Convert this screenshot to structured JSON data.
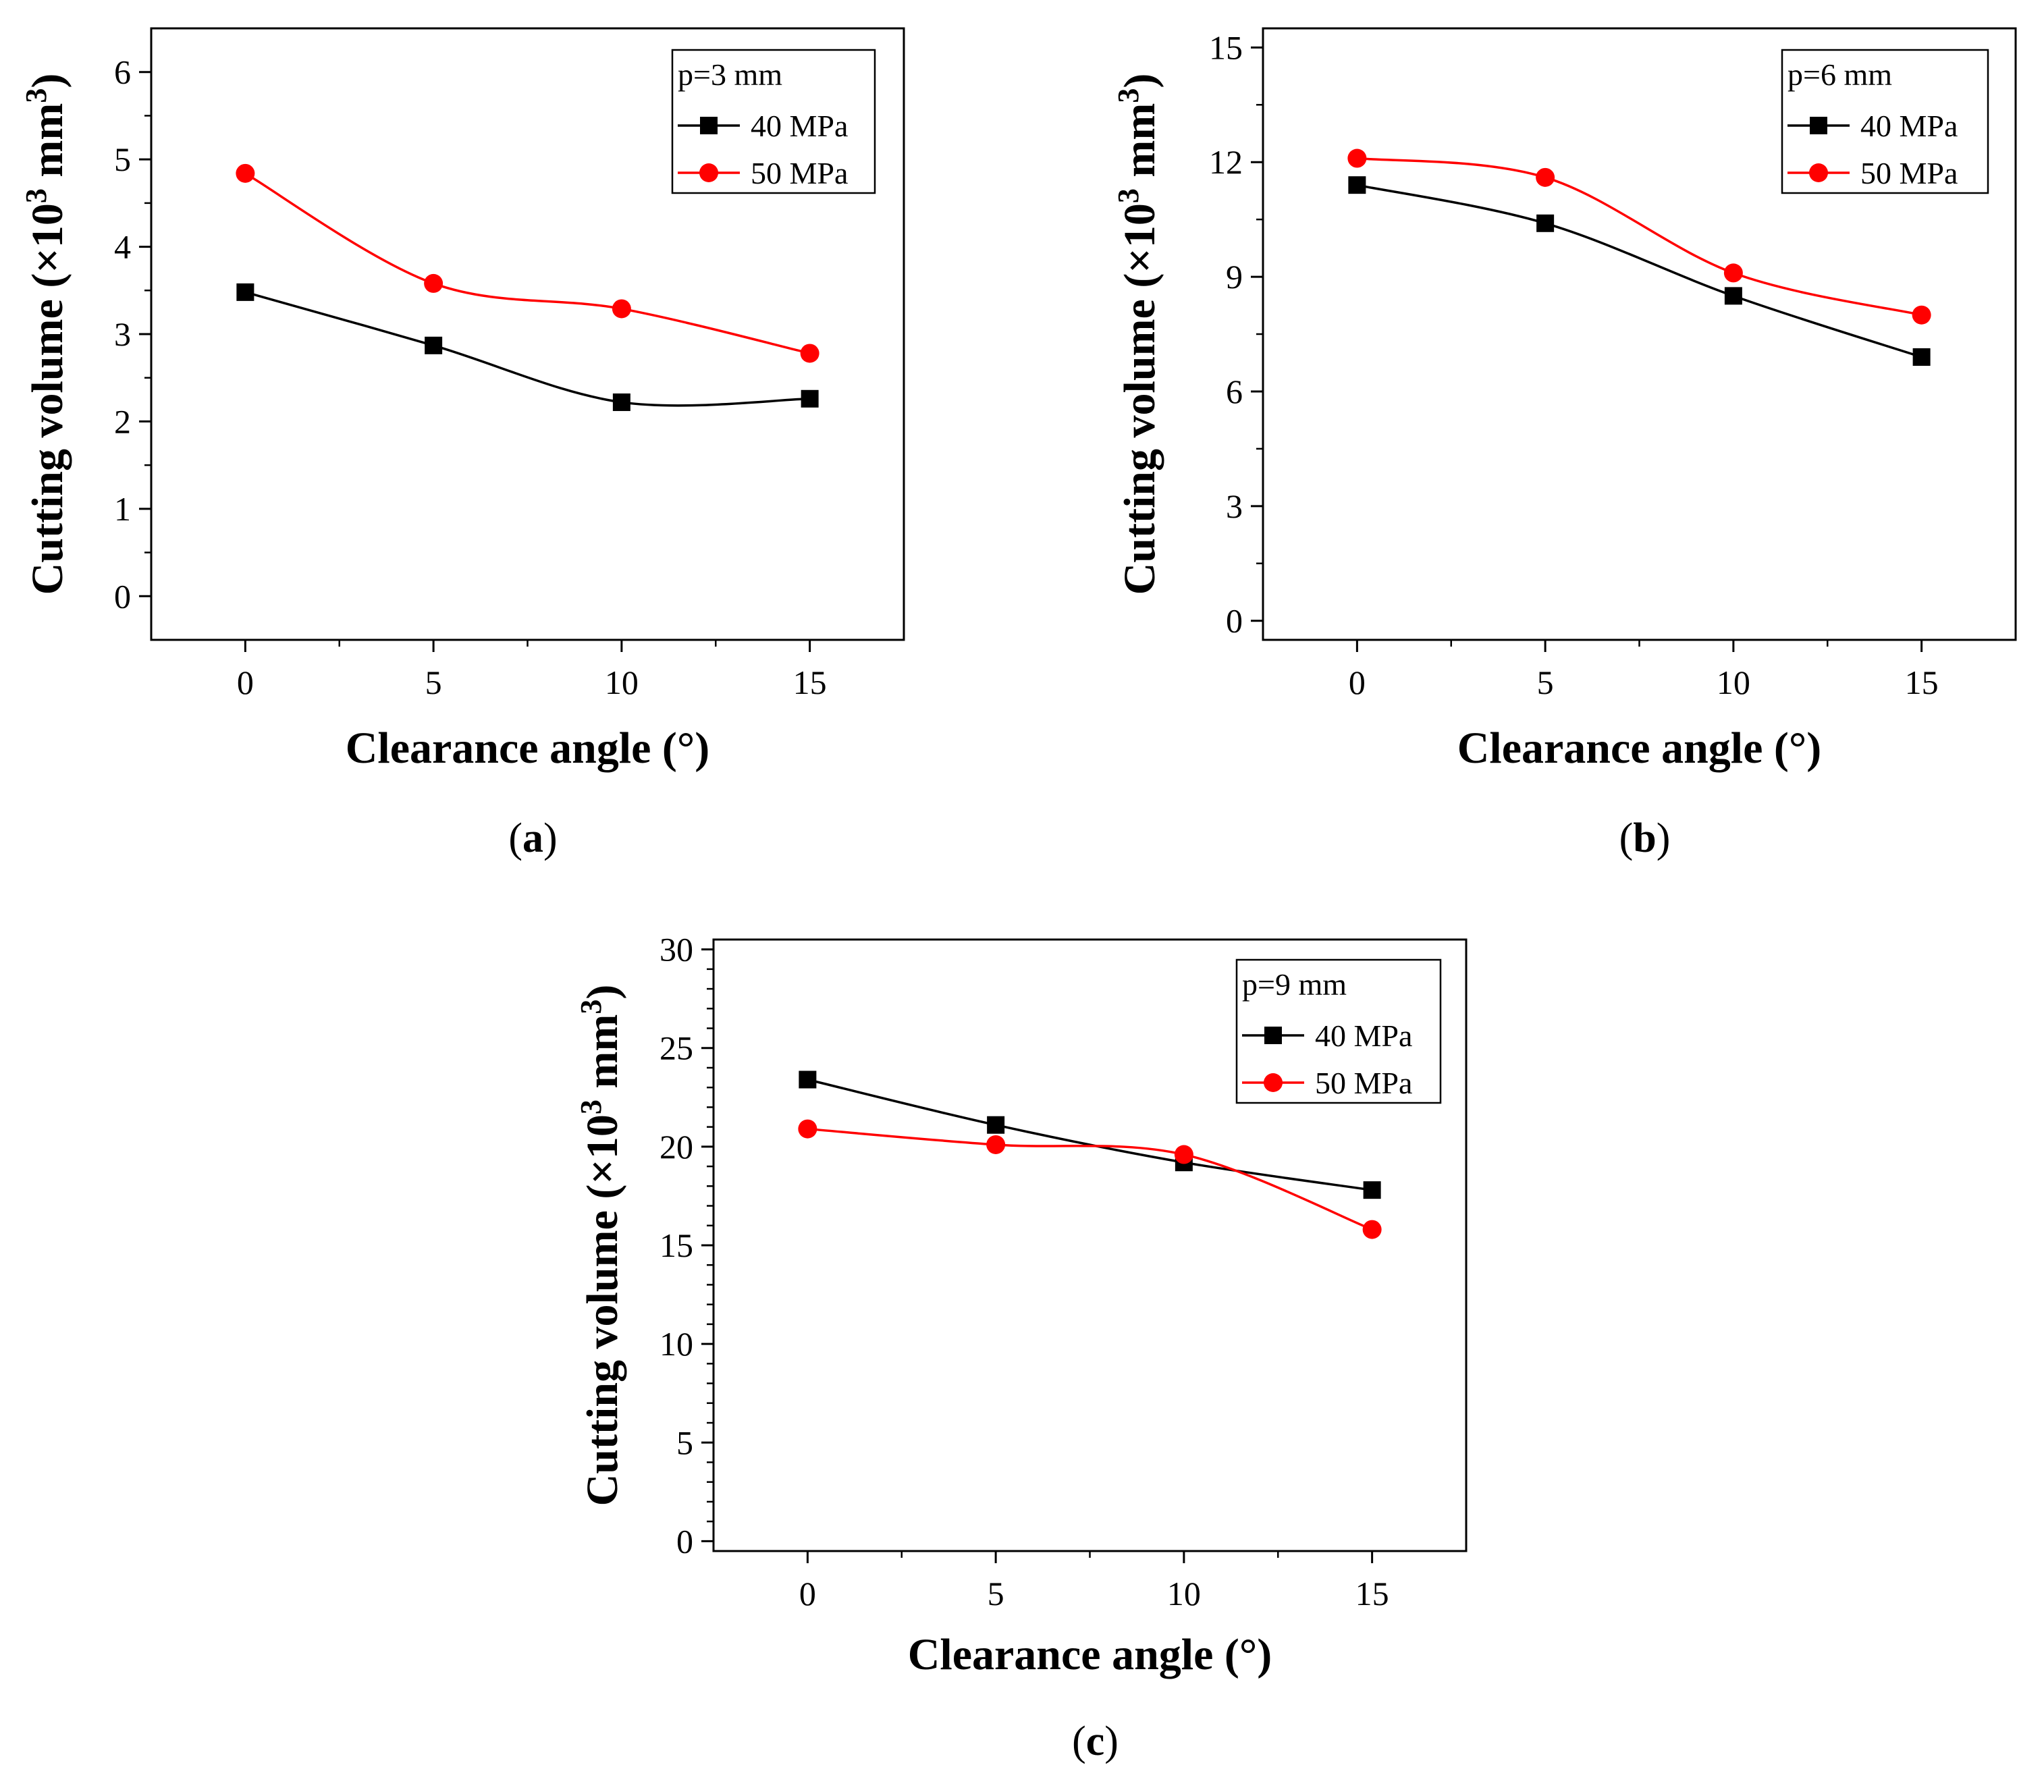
{
  "chart_data": [
    {
      "type": "line",
      "panel": "(a)",
      "caption_letter": "a",
      "title": "",
      "legend_title": "p=3 mm",
      "legend_position": "top-right",
      "xlabel": "Clearance angle (°)",
      "ylabel": "Cutting volume (×10³ mm³)",
      "xlim": [
        -2.5,
        17.5
      ],
      "ylim": [
        -0.5,
        6.5
      ],
      "x_ticks": [
        0,
        5,
        10,
        15
      ],
      "y_ticks": [
        0,
        1,
        2,
        3,
        4,
        5,
        6
      ],
      "y_minor_step": 0.5,
      "grid": false,
      "series": [
        {
          "name": "40 MPa",
          "color": "#000000",
          "marker": "square",
          "x": [
            0,
            5,
            10,
            15
          ],
          "values": [
            3.48,
            2.87,
            2.22,
            2.26
          ]
        },
        {
          "name": "50 MPa",
          "color": "#ff0000",
          "marker": "circle",
          "x": [
            0,
            5,
            10,
            15
          ],
          "values": [
            4.84,
            3.58,
            3.29,
            2.78
          ]
        }
      ]
    },
    {
      "type": "line",
      "panel": "(b)",
      "caption_letter": "b",
      "title": "",
      "legend_title": "p=6 mm",
      "legend_position": "top-right",
      "xlabel": "Clearance angle (°)",
      "ylabel": "Cutting volume (×10³ mm³)",
      "xlim": [
        -2.5,
        17.5
      ],
      "ylim": [
        -0.5,
        15.5
      ],
      "x_ticks": [
        0,
        5,
        10,
        15
      ],
      "y_ticks": [
        0,
        3,
        6,
        9,
        12,
        15
      ],
      "y_minor_step": 1.5,
      "grid": false,
      "series": [
        {
          "name": "40 MPa",
          "color": "#000000",
          "marker": "square",
          "x": [
            0,
            5,
            10,
            15
          ],
          "values": [
            11.4,
            10.4,
            8.5,
            6.9
          ]
        },
        {
          "name": "50 MPa",
          "color": "#ff0000",
          "marker": "circle",
          "x": [
            0,
            5,
            10,
            15
          ],
          "values": [
            12.1,
            11.6,
            9.1,
            8.0
          ]
        }
      ]
    },
    {
      "type": "line",
      "panel": "(c)",
      "caption_letter": "c",
      "title": "",
      "legend_title": "p=9 mm",
      "legend_position": "top-right",
      "xlabel": "Clearance angle (°)",
      "ylabel": "Cutting volume (×10³ mm³)",
      "xlim": [
        -2.5,
        17.5
      ],
      "ylim": [
        -0.5,
        30.5
      ],
      "x_ticks": [
        0,
        5,
        10,
        15
      ],
      "y_ticks": [
        0,
        5,
        10,
        15,
        20,
        25,
        30
      ],
      "y_minor_step": 1,
      "grid": false,
      "series": [
        {
          "name": "40 MPa",
          "color": "#000000",
          "marker": "square",
          "x": [
            0,
            5,
            10,
            15
          ],
          "values": [
            23.4,
            21.1,
            19.2,
            17.8
          ]
        },
        {
          "name": "50 MPa",
          "color": "#ff0000",
          "marker": "circle",
          "x": [
            0,
            5,
            10,
            15
          ],
          "values": [
            20.9,
            20.1,
            19.6,
            15.8
          ]
        }
      ]
    }
  ]
}
